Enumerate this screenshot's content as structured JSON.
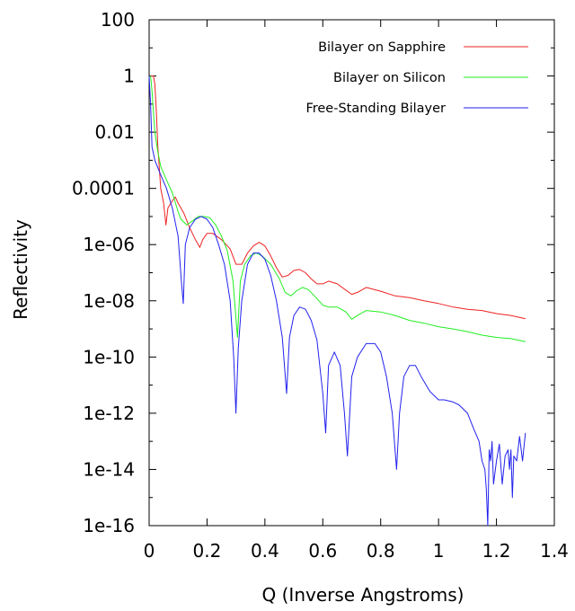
{
  "chart_data": {
    "type": "line",
    "title": "",
    "xlabel": "Q (Inverse Angstroms)",
    "ylabel": "Reflectivity",
    "xlim": [
      0,
      1.4
    ],
    "ylim": [
      1e-16,
      100
    ],
    "yscale": "log",
    "grid": false,
    "legend_position": "top-right",
    "x_ticks": [
      0,
      0.2,
      0.4,
      0.6,
      0.8,
      1,
      1.2,
      1.4
    ],
    "x_tick_labels": [
      "0",
      "0.2",
      "0.4",
      "0.6",
      "0.8",
      "1",
      "1.2",
      "1.4"
    ],
    "y_ticks": [
      100,
      1,
      0.01,
      0.0001,
      1e-06,
      1e-08,
      1e-10,
      1e-12,
      1e-14,
      1e-16
    ],
    "y_tick_labels": [
      "100",
      "1",
      "0.01",
      "0.0001",
      "1e-06",
      "1e-08",
      "1e-10",
      "1e-12",
      "1e-14",
      "1e-16"
    ],
    "series": [
      {
        "name": "Bilayer on Sapphire",
        "color": "#ee2222",
        "x": [
          0.005,
          0.015,
          0.02,
          0.025,
          0.03,
          0.04,
          0.05,
          0.058,
          0.065,
          0.075,
          0.09,
          0.1,
          0.12,
          0.14,
          0.16,
          0.175,
          0.185,
          0.2,
          0.22,
          0.25,
          0.28,
          0.3,
          0.32,
          0.34,
          0.36,
          0.38,
          0.4,
          0.42,
          0.44,
          0.46,
          0.48,
          0.5,
          0.52,
          0.54,
          0.56,
          0.58,
          0.6,
          0.62,
          0.65,
          0.7,
          0.72,
          0.75,
          0.8,
          0.85,
          0.9,
          0.95,
          1.0,
          1.05,
          1.1,
          1.15,
          1.2,
          1.25,
          1.3
        ],
        "y": [
          1,
          1,
          0.5,
          0.05,
          0.003,
          0.0001,
          3e-05,
          5e-06,
          2e-05,
          3e-05,
          5e-05,
          3e-05,
          1.3e-05,
          4e-06,
          1.5e-06,
          8e-07,
          1.5e-06,
          2.5e-06,
          2.5e-06,
          1.5e-06,
          7e-07,
          2e-07,
          2e-07,
          5e-07,
          9e-07,
          1.2e-06,
          9e-07,
          4e-07,
          1.5e-07,
          7e-08,
          8e-08,
          1.2e-07,
          1.3e-07,
          1e-07,
          6e-08,
          4e-08,
          4e-08,
          5e-08,
          4e-08,
          1.7e-08,
          2e-08,
          3e-08,
          2.2e-08,
          1.5e-08,
          1.3e-08,
          1e-08,
          8e-09,
          6e-09,
          5e-09,
          4.5e-09,
          3.5e-09,
          3e-09,
          2.3e-09
        ]
      },
      {
        "name": "Bilayer on Silicon",
        "color": "#22ee22",
        "x": [
          0.005,
          0.01,
          0.015,
          0.02,
          0.03,
          0.04,
          0.06,
          0.08,
          0.1,
          0.11,
          0.13,
          0.15,
          0.17,
          0.19,
          0.21,
          0.23,
          0.25,
          0.27,
          0.29,
          0.305,
          0.315,
          0.33,
          0.35,
          0.37,
          0.39,
          0.42,
          0.45,
          0.47,
          0.49,
          0.51,
          0.53,
          0.55,
          0.58,
          0.6,
          0.62,
          0.65,
          0.68,
          0.7,
          0.72,
          0.75,
          0.8,
          0.85,
          0.9,
          0.95,
          1.0,
          1.05,
          1.1,
          1.15,
          1.2,
          1.25,
          1.3
        ],
        "y": [
          1,
          0.3,
          0.05,
          0.01,
          0.002,
          0.0006,
          0.0002,
          7e-05,
          1.5e-05,
          8e-06,
          5e-06,
          7e-06,
          1e-05,
          1e-05,
          9e-06,
          5e-06,
          2e-06,
          6e-07,
          5e-08,
          5e-10,
          5e-08,
          2e-07,
          4e-07,
          5e-07,
          4e-07,
          2e-07,
          6e-08,
          2e-08,
          1.5e-08,
          2.3e-08,
          3e-08,
          2.5e-08,
          1.2e-08,
          7e-09,
          6e-09,
          6e-09,
          4e-09,
          2.2e-09,
          3e-09,
          4.5e-09,
          4e-09,
          3e-09,
          2e-09,
          1.6e-09,
          1.2e-09,
          1e-09,
          8e-10,
          6e-10,
          5e-10,
          4.5e-10,
          3.5e-10
        ]
      },
      {
        "name": "Free-Standing Bilayer",
        "color": "#2222ee",
        "x": [
          0.0,
          0.005,
          0.01,
          0.02,
          0.04,
          0.06,
          0.08,
          0.1,
          0.112,
          0.118,
          0.125,
          0.14,
          0.16,
          0.18,
          0.2,
          0.22,
          0.24,
          0.26,
          0.28,
          0.292,
          0.3,
          0.308,
          0.32,
          0.34,
          0.36,
          0.38,
          0.4,
          0.42,
          0.44,
          0.46,
          0.475,
          0.485,
          0.5,
          0.52,
          0.54,
          0.56,
          0.58,
          0.6,
          0.61,
          0.62,
          0.64,
          0.66,
          0.675,
          0.685,
          0.7,
          0.72,
          0.75,
          0.78,
          0.8,
          0.82,
          0.84,
          0.855,
          0.865,
          0.88,
          0.9,
          0.92,
          0.94,
          0.97,
          1.0,
          1.02,
          1.05,
          1.07,
          1.1,
          1.12,
          1.14,
          1.15,
          1.16,
          1.165,
          1.17,
          1.175,
          1.18,
          1.185,
          1.19,
          1.2,
          1.21,
          1.22,
          1.23,
          1.24,
          1.245,
          1.25,
          1.255,
          1.26,
          1.27,
          1.28,
          1.29,
          1.3
        ],
        "y": [
          1,
          0.1,
          0.003,
          0.001,
          0.0003,
          0.0001,
          2e-05,
          2e-06,
          4e-08,
          8e-09,
          1e-06,
          4e-06,
          8e-06,
          1e-05,
          8e-06,
          4e-06,
          1e-06,
          2e-07,
          1e-08,
          1e-10,
          1e-12,
          2e-10,
          1e-08,
          2e-07,
          5e-07,
          5e-07,
          3e-07,
          8e-08,
          1e-08,
          5e-10,
          5e-12,
          5e-10,
          3e-09,
          6e-09,
          5e-09,
          2e-09,
          4e-10,
          5e-12,
          2e-13,
          5e-11,
          1.5e-10,
          5e-11,
          1e-12,
          3e-14,
          2e-11,
          1e-10,
          3e-10,
          3e-10,
          1.5e-10,
          2e-11,
          1e-12,
          1e-14,
          1e-12,
          2e-11,
          5e-11,
          5e-11,
          2e-11,
          6e-12,
          3e-12,
          3e-12,
          2.5e-12,
          2e-12,
          1e-12,
          3e-13,
          1e-13,
          2e-14,
          1e-14,
          2e-15,
          1e-16,
          5e-14,
          2e-14,
          1e-13,
          3e-15,
          2e-14,
          8e-14,
          3e-15,
          3e-14,
          5e-14,
          1e-14,
          5e-14,
          1e-15,
          3e-14,
          2e-14,
          1.5e-13,
          2e-14,
          2e-13
        ]
      }
    ]
  }
}
